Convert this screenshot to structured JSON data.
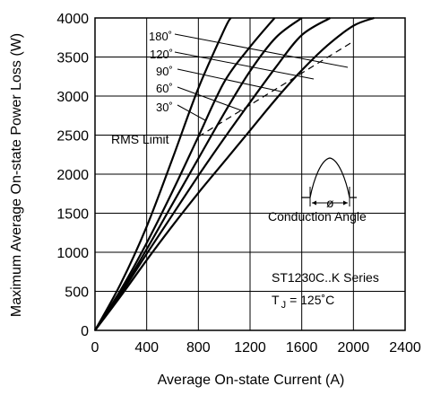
{
  "chart_data": {
    "type": "line",
    "title": "",
    "xlabel": "Average On-state Current (A)",
    "ylabel": "Maximum Average On-state Power Loss (W)",
    "xlim": [
      0,
      2400
    ],
    "ylim": [
      0,
      4000
    ],
    "xticks": [
      0,
      400,
      800,
      1200,
      1600,
      2000,
      2400
    ],
    "yticks": [
      0,
      500,
      1000,
      1500,
      2000,
      2500,
      3000,
      3500,
      4000
    ],
    "grid": true,
    "series": [
      {
        "name": "30°",
        "x": [
          0,
          200,
          400,
          600,
          800,
          1000,
          1050
        ],
        "y": [
          0,
          600,
          1330,
          2200,
          3100,
          3850,
          4000
        ]
      },
      {
        "name": "60°",
        "x": [
          0,
          200,
          400,
          600,
          800,
          1000,
          1200,
          1390
        ],
        "y": [
          0,
          520,
          1120,
          1780,
          2480,
          3180,
          3630,
          4000
        ]
      },
      {
        "name": "90°",
        "x": [
          0,
          200,
          400,
          600,
          800,
          1000,
          1200,
          1400,
          1600
        ],
        "y": [
          0,
          490,
          1040,
          1620,
          2200,
          2780,
          3320,
          3750,
          4000
        ]
      },
      {
        "name": "120°",
        "x": [
          0,
          200,
          400,
          600,
          800,
          1000,
          1200,
          1400,
          1600,
          1820
        ],
        "y": [
          0,
          470,
          980,
          1480,
          1980,
          2460,
          2920,
          3370,
          3780,
          4000
        ]
      },
      {
        "name": "180°",
        "x": [
          0,
          200,
          400,
          600,
          800,
          1000,
          1200,
          1400,
          1600,
          1800,
          2000,
          2160
        ],
        "y": [
          0,
          440,
          900,
          1340,
          1760,
          2160,
          2560,
          2960,
          3330,
          3650,
          3900,
          4000
        ]
      }
    ],
    "series_labels": [
      "180˚",
      "120˚",
      "90˚",
      "60˚",
      "30˚"
    ],
    "rms_limit": {
      "label": "RMS Limit",
      "x": [
        800,
        2000
      ],
      "y": [
        2480,
        3700
      ]
    },
    "annotations": {
      "conduction_angle": "Conduction Angle",
      "phi": "ø",
      "series_name": "ST1230C..K Series",
      "temperature": "T",
      "temperature_sub": "J",
      "temperature_value": "= 125˚C"
    },
    "colors": {
      "line": "#000000",
      "background": "#ffffff"
    }
  }
}
